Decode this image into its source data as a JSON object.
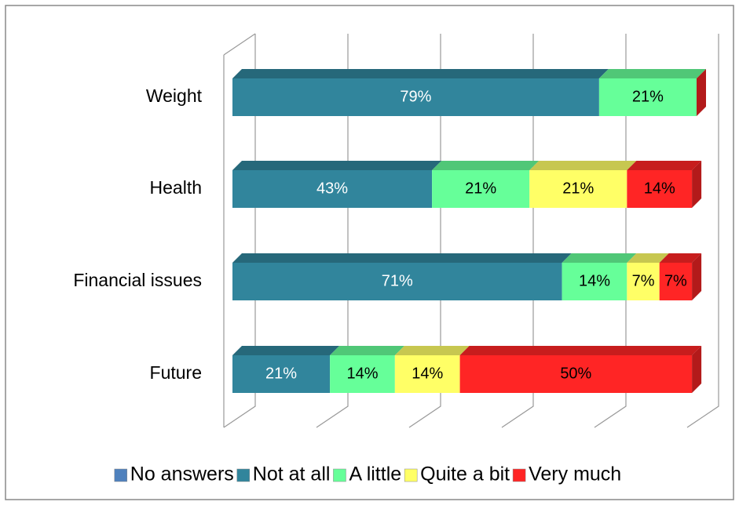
{
  "chart_data": {
    "type": "bar",
    "orientation": "horizontal",
    "stacked": true,
    "three_d": true,
    "categories": [
      "Weight",
      "Health",
      "Financial issues",
      "Future"
    ],
    "series": [
      {
        "name": "No answers",
        "color": "#4f81bd",
        "values": [
          0,
          0,
          0,
          0
        ],
        "value_labels": [
          null,
          null,
          null,
          null
        ]
      },
      {
        "name": "Not at all",
        "color": "#31859c",
        "values": [
          79,
          43,
          71,
          21
        ],
        "value_labels": [
          "79%",
          "43%",
          "71%",
          "21%"
        ]
      },
      {
        "name": "A little",
        "color": "#66ff99",
        "values": [
          21,
          21,
          14,
          14
        ],
        "value_labels": [
          "21%",
          "21%",
          "14%",
          "14%"
        ]
      },
      {
        "name": "Quite a bit",
        "color": "#ffff66",
        "values": [
          0,
          21,
          7,
          14
        ],
        "value_labels": [
          null,
          "21%",
          "7%",
          "14%"
        ]
      },
      {
        "name": "Very much",
        "color": "#ff2525",
        "values": [
          0,
          14,
          7,
          50
        ],
        "value_labels": [
          null,
          "14%",
          "7%",
          "50%"
        ]
      }
    ],
    "xlim": [
      0,
      100
    ],
    "xticks": [
      0,
      20,
      40,
      60,
      80,
      100
    ],
    "grid": true,
    "legend": "bottom"
  }
}
